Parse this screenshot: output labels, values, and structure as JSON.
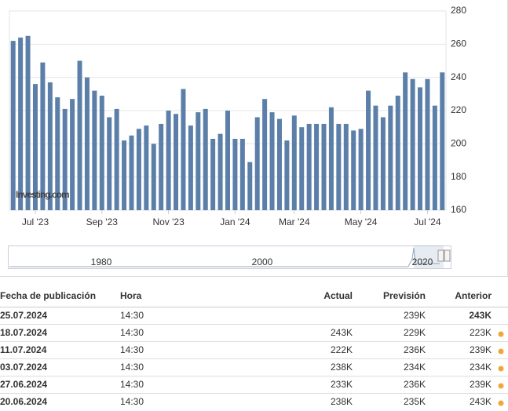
{
  "chart_data": {
    "type": "bar",
    "watermark": "Investing.com",
    "categories": [
      null,
      null,
      null,
      "Jul '23",
      null,
      null,
      null,
      null,
      null,
      null,
      null,
      null,
      "Sep '23",
      null,
      null,
      null,
      null,
      null,
      null,
      null,
      null,
      "Nov '23",
      null,
      null,
      null,
      null,
      null,
      null,
      null,
      null,
      "Jan '24",
      null,
      null,
      null,
      null,
      null,
      null,
      null,
      "Mar '24",
      null,
      null,
      null,
      null,
      null,
      null,
      null,
      null,
      "May '24",
      null,
      null,
      null,
      null,
      null,
      null,
      null,
      null,
      "Jul '24",
      null,
      null
    ],
    "values": [
      262,
      264,
      265,
      236,
      249,
      237,
      228,
      221,
      227,
      250,
      240,
      232,
      229,
      216,
      221,
      202,
      205,
      209,
      211,
      200,
      212,
      220,
      218,
      233,
      211,
      219,
      221,
      203,
      206,
      220,
      203,
      203,
      189,
      216,
      227,
      219,
      215,
      202,
      217,
      210,
      212,
      212,
      212,
      222,
      212,
      212,
      208,
      209,
      232,
      223,
      216,
      223,
      229,
      243,
      239,
      234,
      239,
      223,
      243
    ],
    "color": "#5b7fa9",
    "ylim": [
      160,
      280
    ],
    "yticks": [
      160,
      180,
      200,
      220,
      240,
      260,
      280
    ],
    "grid": true,
    "navigator_labels": [
      "1980",
      "2000",
      "2020"
    ]
  },
  "table": {
    "headers": [
      "Fecha de publicación",
      "Hora",
      "Actual",
      "Previsión",
      "Anterior"
    ],
    "rows": [
      {
        "date": "25.07.2024",
        "time": "14:30",
        "actual": "",
        "actual_color": "#000000",
        "forecast": "239K",
        "previous": "243K",
        "previous_color": "#000000",
        "dot": false
      },
      {
        "date": "18.07.2024",
        "time": "14:30",
        "actual": "243K",
        "actual_color": "#e0161e",
        "forecast": "229K",
        "previous": "223K",
        "previous_color": "#e0161e",
        "dot": true
      },
      {
        "date": "11.07.2024",
        "time": "14:30",
        "actual": "222K",
        "actual_color": "#19a12b",
        "forecast": "236K",
        "previous": "239K",
        "previous_color": "#e0161e",
        "dot": true
      },
      {
        "date": "03.07.2024",
        "time": "14:30",
        "actual": "238K",
        "actual_color": "#e0161e",
        "forecast": "234K",
        "previous": "234K",
        "previous_color": "#e0161e",
        "dot": true
      },
      {
        "date": "27.06.2024",
        "time": "14:30",
        "actual": "233K",
        "actual_color": "#19a12b",
        "forecast": "236K",
        "previous": "239K",
        "previous_color": "#e0161e",
        "dot": true
      },
      {
        "date": "20.06.2024",
        "time": "14:30",
        "actual": "238K",
        "actual_color": "#e0161e",
        "forecast": "235K",
        "previous": "243K",
        "previous_color": "#e0161e",
        "dot": true
      }
    ]
  }
}
